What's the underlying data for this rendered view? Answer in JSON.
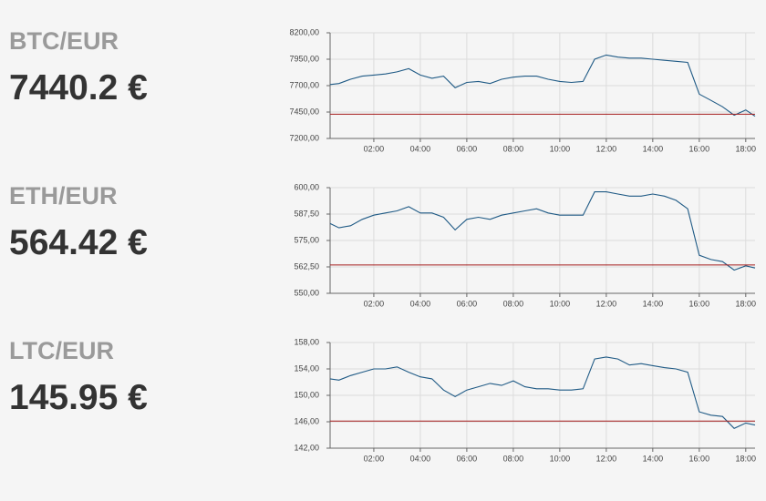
{
  "chart_data": [
    {
      "type": "line",
      "title": "BTC/EUR",
      "subtitle": "7440.2 €",
      "color": "#1f5a85",
      "reference_line": 7430,
      "reference_color": "#a51d1d",
      "grid": true,
      "x": [
        0.12,
        0.5,
        1,
        1.5,
        2,
        2.5,
        3,
        3.5,
        4,
        4.5,
        5,
        5.5,
        6,
        6.5,
        7,
        7.5,
        8,
        8.5,
        9,
        9.5,
        10,
        10.5,
        11,
        11.5,
        12,
        12.5,
        13,
        13.5,
        14,
        14.5,
        15,
        15.5,
        16,
        16.5,
        17,
        17.5,
        18,
        18.4
      ],
      "values": [
        7710,
        7720,
        7760,
        7790,
        7800,
        7810,
        7830,
        7860,
        7800,
        7770,
        7790,
        7680,
        7730,
        7740,
        7720,
        7760,
        7780,
        7790,
        7790,
        7760,
        7740,
        7730,
        7740,
        7950,
        7990,
        7970,
        7960,
        7960,
        7950,
        7940,
        7930,
        7920,
        7620,
        7560,
        7500,
        7420,
        7470,
        7410
      ],
      "xlim": [
        0.12,
        18.4
      ],
      "xticks": [
        {
          "value": 2,
          "label": "02:00"
        },
        {
          "value": 4,
          "label": "04:00"
        },
        {
          "value": 6,
          "label": "06:00"
        },
        {
          "value": 8,
          "label": "08:00"
        },
        {
          "value": 10,
          "label": "10:00"
        },
        {
          "value": 12,
          "label": "12:00"
        },
        {
          "value": 14,
          "label": "14:00"
        },
        {
          "value": 16,
          "label": "16:00"
        },
        {
          "value": 18,
          "label": "18:00"
        }
      ],
      "ylim": [
        7200,
        8200
      ],
      "yticks": [
        {
          "value": 7200,
          "label": "7200,00"
        },
        {
          "value": 7450,
          "label": "7450,00"
        },
        {
          "value": 7700,
          "label": "7700,00"
        },
        {
          "value": 7950,
          "label": "7950,00"
        },
        {
          "value": 8200,
          "label": "8200,00"
        }
      ]
    },
    {
      "type": "line",
      "title": "ETH/EUR",
      "subtitle": "564.42 €",
      "color": "#1f5a85",
      "reference_line": 563.4,
      "reference_color": "#a51d1d",
      "grid": true,
      "x": [
        0.12,
        0.5,
        1,
        1.5,
        2,
        2.5,
        3,
        3.5,
        4,
        4.5,
        5,
        5.5,
        6,
        6.5,
        7,
        7.5,
        8,
        8.5,
        9,
        9.5,
        10,
        10.5,
        11,
        11.5,
        12,
        12.5,
        13,
        13.5,
        14,
        14.5,
        15,
        15.5,
        16,
        16.5,
        17,
        17.5,
        18,
        18.4
      ],
      "values": [
        583,
        581,
        582,
        585,
        587,
        588,
        589,
        591,
        588,
        588,
        586,
        580,
        585,
        586,
        585,
        587,
        588,
        589,
        590,
        588,
        587,
        587,
        587,
        598,
        598,
        597,
        596,
        596,
        597,
        596,
        594,
        590,
        568,
        566,
        565,
        561,
        563,
        562
      ],
      "xlim": [
        0.12,
        18.4
      ],
      "xticks": [
        {
          "value": 2,
          "label": "02:00"
        },
        {
          "value": 4,
          "label": "04:00"
        },
        {
          "value": 6,
          "label": "06:00"
        },
        {
          "value": 8,
          "label": "08:00"
        },
        {
          "value": 10,
          "label": "10:00"
        },
        {
          "value": 12,
          "label": "12:00"
        },
        {
          "value": 14,
          "label": "14:00"
        },
        {
          "value": 16,
          "label": "16:00"
        },
        {
          "value": 18,
          "label": "18:00"
        }
      ],
      "ylim": [
        550,
        600
      ],
      "yticks": [
        {
          "value": 550,
          "label": "550,00"
        },
        {
          "value": 562.5,
          "label": "562,50"
        },
        {
          "value": 575,
          "label": "575,00"
        },
        {
          "value": 587.5,
          "label": "587,50"
        },
        {
          "value": 600,
          "label": "600,00"
        }
      ]
    },
    {
      "type": "line",
      "title": "LTC/EUR",
      "subtitle": "145.95 €",
      "color": "#1f5a85",
      "reference_line": 146.1,
      "reference_color": "#a51d1d",
      "grid": true,
      "x": [
        0.12,
        0.5,
        1,
        1.5,
        2,
        2.5,
        3,
        3.5,
        4,
        4.5,
        5,
        5.5,
        6,
        6.5,
        7,
        7.5,
        8,
        8.5,
        9,
        9.5,
        10,
        10.5,
        11,
        11.5,
        12,
        12.5,
        13,
        13.5,
        14,
        14.5,
        15,
        15.5,
        16,
        16.5,
        17,
        17.5,
        18,
        18.4
      ],
      "values": [
        152.5,
        152.3,
        153,
        153.5,
        154,
        154,
        154.3,
        153.5,
        152.8,
        152.5,
        150.8,
        149.8,
        150.8,
        151.3,
        151.8,
        151.5,
        152.2,
        151.3,
        151,
        151,
        150.8,
        150.8,
        151,
        155.5,
        155.8,
        155.5,
        154.6,
        154.8,
        154.5,
        154.2,
        154,
        153.5,
        147.5,
        147,
        146.8,
        145,
        145.8,
        145.5
      ],
      "xlim": [
        0.12,
        18.4
      ],
      "xticks": [
        {
          "value": 2,
          "label": "02:00"
        },
        {
          "value": 4,
          "label": "04:00"
        },
        {
          "value": 6,
          "label": "06:00"
        },
        {
          "value": 8,
          "label": "08:00"
        },
        {
          "value": 10,
          "label": "10:00"
        },
        {
          "value": 12,
          "label": "12:00"
        },
        {
          "value": 14,
          "label": "14:00"
        },
        {
          "value": 16,
          "label": "16:00"
        },
        {
          "value": 18,
          "label": "18:00"
        }
      ],
      "ylim": [
        142,
        158
      ],
      "yticks": [
        {
          "value": 142,
          "label": "142,00"
        },
        {
          "value": 146,
          "label": "146,00"
        },
        {
          "value": 150,
          "label": "150,00"
        },
        {
          "value": 154,
          "label": "154,00"
        },
        {
          "value": 158,
          "label": "158,00"
        }
      ]
    }
  ]
}
